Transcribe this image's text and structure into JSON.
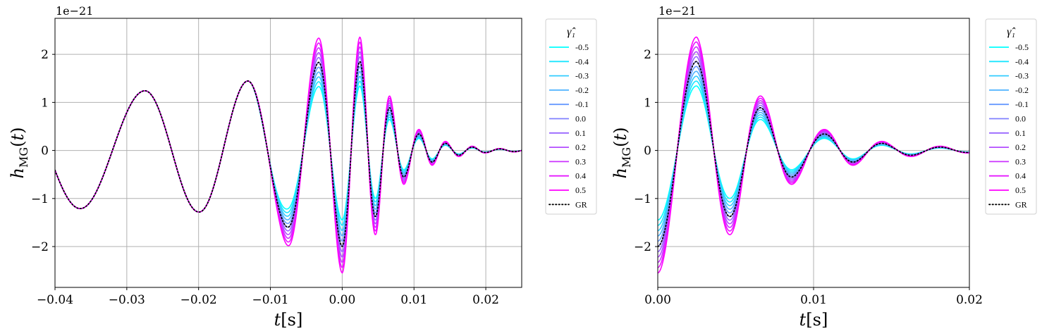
{
  "chart_data": [
    {
      "type": "line",
      "id": "left",
      "xlabel": "t[s]",
      "ylabel": "h_MG(t)",
      "offset_label": "1e−21",
      "xlim": [
        -0.04,
        0.025
      ],
      "ylim": [
        -2.85,
        2.75
      ],
      "x_ticks": [
        -0.04,
        -0.03,
        -0.02,
        -0.01,
        0.0,
        0.01,
        0.02
      ],
      "x_tick_labels": [
        "−0.04",
        "−0.03",
        "−0.02",
        "−0.01",
        "0.00",
        "0.01",
        "0.02"
      ],
      "y_ticks": [
        -2,
        -1,
        0,
        1,
        2
      ],
      "y_tick_labels": [
        "−2",
        "−1",
        "0",
        "1",
        "2"
      ],
      "grid": true,
      "legend": {
        "title": "γ̂₁",
        "placement": "outside-right",
        "entries": [
          "-0.5",
          "-0.4",
          "-0.3",
          "-0.2",
          "-0.1",
          "0.0",
          "0.1",
          "0.2",
          "0.3",
          "0.4",
          "0.5",
          "GR"
        ]
      }
    },
    {
      "type": "line",
      "id": "right",
      "xlabel": "t[s]",
      "ylabel": "h_MG(t)",
      "offset_label": "1e−21",
      "xlim": [
        0.0,
        0.02
      ],
      "ylim": [
        -2.85,
        2.75
      ],
      "x_ticks": [
        0.0,
        0.01,
        0.02
      ],
      "x_tick_labels": [
        "0.00",
        "0.01",
        "0.02"
      ],
      "y_ticks": [
        -2,
        -1,
        0,
        1,
        2
      ],
      "y_tick_labels": [
        "−2",
        "−1",
        "0",
        "1",
        "2"
      ],
      "grid": true,
      "legend": {
        "title": "γ̂₁",
        "placement": "outside-right",
        "entries": [
          "-0.5",
          "-0.4",
          "-0.3",
          "-0.2",
          "-0.1",
          "0.0",
          "0.1",
          "0.2",
          "0.3",
          "0.4",
          "0.5",
          "GR"
        ]
      }
    }
  ],
  "series_params": {
    "gammas": [
      -0.5,
      -0.4,
      -0.3,
      -0.2,
      -0.1,
      0.0,
      0.1,
      0.2,
      0.3,
      0.4,
      0.5
    ],
    "colors": [
      "#00ffff",
      "#1ae5ff",
      "#33ccff",
      "#4db2ff",
      "#6699ff",
      "#8080ff",
      "#9966ff",
      "#b34dff",
      "#cc33ff",
      "#e619ff",
      "#ff00ff"
    ],
    "gr_color": "#000000",
    "gr_dash": "dotted"
  },
  "waveform_envelope": {
    "t": [
      -0.04,
      -0.03,
      -0.02,
      -0.013,
      -0.0075,
      -0.003,
      0.0,
      0.0025,
      0.005,
      0.007,
      0.009,
      0.011,
      0.015,
      0.02,
      0.025
    ],
    "amp": [
      1.2,
      1.23,
      1.28,
      1.45,
      1.6,
      1.85,
      2.0,
      1.85,
      1.3,
      0.8,
      0.5,
      0.32,
      0.12,
      0.04,
      0.02
    ]
  },
  "waveform_phase_anchors": {
    "t": [
      -0.0365,
      -0.0275,
      -0.02,
      -0.0132,
      -0.0076,
      -0.0033,
      0.0,
      0.0025,
      0.0047,
      0.0067,
      0.0087,
      0.0108,
      0.0126,
      0.0145,
      0.0163,
      0.0182,
      0.02,
      0.022,
      0.024
    ],
    "value": [
      -1,
      1,
      -1,
      1,
      -1,
      1,
      -1,
      1,
      -1,
      1,
      -1,
      1,
      -1,
      1,
      -1,
      1,
      -1,
      1,
      -1
    ]
  },
  "modification": {
    "t_start": -0.013,
    "t_ramp": 0.007,
    "peak_gain_scale": 0.55
  }
}
